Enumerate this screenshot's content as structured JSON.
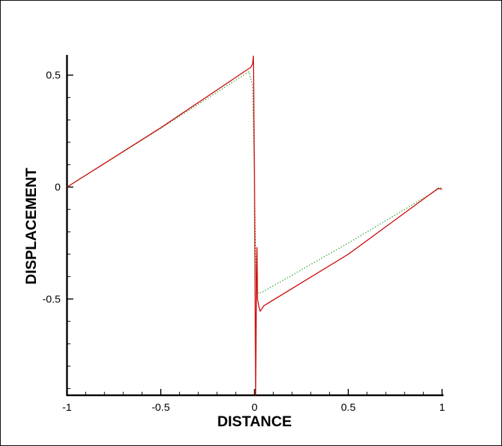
{
  "chart_data": {
    "type": "line",
    "title": "",
    "xlabel": "DISTANCE",
    "ylabel": "DISPLACEMENT",
    "xlim": [
      -1,
      1
    ],
    "ylim": [
      -0.93,
      0.59
    ],
    "x_ticks": [
      -1,
      -0.5,
      0,
      0.5,
      1
    ],
    "x_tick_labels": [
      "-1",
      "-0.5",
      "0",
      "0.5",
      "1"
    ],
    "y_ticks": [
      -0.5,
      0,
      0.5
    ],
    "y_tick_labels": [
      "-0.5",
      "0",
      "0.5"
    ],
    "grid": false,
    "legend": "none",
    "series": [
      {
        "color": "#cc0000",
        "style": "solid",
        "points": [
          [
            -1.0,
            0.0
          ],
          [
            -0.5,
            0.265
          ],
          [
            -0.02,
            0.535
          ],
          [
            -0.01,
            0.55
          ],
          [
            -0.006,
            0.585
          ],
          [
            -0.003,
            0.3
          ],
          [
            0.0,
            0.0
          ],
          [
            0.003,
            -0.45
          ],
          [
            0.006,
            -0.93
          ],
          [
            0.008,
            -0.7
          ],
          [
            0.01,
            -0.4
          ],
          [
            0.013,
            -0.27
          ],
          [
            0.016,
            -0.5
          ],
          [
            0.022,
            -0.53
          ],
          [
            0.03,
            -0.555
          ],
          [
            0.05,
            -0.53
          ],
          [
            0.5,
            -0.3
          ],
          [
            0.98,
            -0.005
          ],
          [
            1.0,
            -0.01
          ]
        ]
      },
      {
        "color": "#2e9e2e",
        "style": "dotted",
        "points": [
          [
            -1.0,
            0.0
          ],
          [
            -0.5,
            0.262
          ],
          [
            -0.03,
            0.515
          ],
          [
            -0.01,
            0.45
          ],
          [
            0.0,
            0.0
          ],
          [
            0.01,
            -0.46
          ],
          [
            0.02,
            -0.475
          ],
          [
            0.04,
            -0.47
          ],
          [
            0.5,
            -0.25
          ],
          [
            1.0,
            0.0
          ]
        ]
      }
    ]
  }
}
